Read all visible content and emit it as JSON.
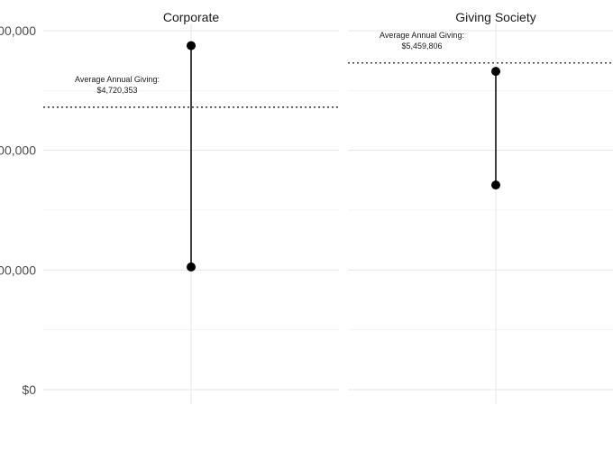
{
  "chart_data": {
    "type": "dumbbell",
    "y_tick_labels": [
      "$0",
      "00,000",
      "00,000",
      "00,000"
    ],
    "y_tick_values": [
      0,
      2000000,
      4000000,
      6000000
    ],
    "ylim": [
      0,
      6000000
    ],
    "grid": true,
    "facets": [
      {
        "title": "Corporate",
        "low": 2050000,
        "high": 5750000,
        "average": 4720353,
        "annotation_line1": "Average Annual Giving:",
        "annotation_line2": "$4,720,353"
      },
      {
        "title": "Giving Society",
        "low": 3420000,
        "high": 5320000,
        "average": 5459806,
        "annotation_line1": "Average Annual Giving:",
        "annotation_line2": "$5,459,806"
      }
    ]
  }
}
